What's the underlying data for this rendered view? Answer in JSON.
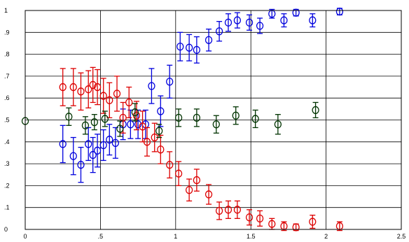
{
  "chart_data": {
    "type": "scatter",
    "title": "",
    "xlabel": "",
    "ylabel": "",
    "xlim": [
      0,
      2.5
    ],
    "ylim": [
      0,
      1.0
    ],
    "grid": true,
    "legend": "none",
    "x_ticks": [
      {
        "value": 0,
        "label": "0"
      },
      {
        "value": 0.5,
        "label": ".5"
      },
      {
        "value": 1.0,
        "label": "1"
      },
      {
        "value": 1.5,
        "label": "1.5"
      },
      {
        "value": 2.0,
        "label": "2"
      },
      {
        "value": 2.5,
        "label": "2.5"
      }
    ],
    "y_ticks": [
      {
        "value": 0,
        "label": "0"
      },
      {
        "value": 0.1,
        "label": ".1"
      },
      {
        "value": 0.2,
        "label": ".2"
      },
      {
        "value": 0.3,
        "label": ".3"
      },
      {
        "value": 0.4,
        "label": ".4"
      },
      {
        "value": 0.5,
        "label": ".5"
      },
      {
        "value": 0.6,
        "label": ".6"
      },
      {
        "value": 0.7,
        "label": ".7"
      },
      {
        "value": 0.8,
        "label": ".8"
      },
      {
        "value": 0.9,
        "label": ".9"
      },
      {
        "value": 1.0,
        "label": "1"
      }
    ],
    "series": [
      {
        "color": "#0000dd",
        "points": [
          {
            "x": 0.25,
            "y": 0.39,
            "err": 0.085
          },
          {
            "x": 0.32,
            "y": 0.335,
            "err": 0.085
          },
          {
            "x": 0.37,
            "y": 0.295,
            "err": 0.08
          },
          {
            "x": 0.42,
            "y": 0.39,
            "err": 0.075
          },
          {
            "x": 0.45,
            "y": 0.34,
            "err": 0.08
          },
          {
            "x": 0.48,
            "y": 0.36,
            "err": 0.075
          },
          {
            "x": 0.52,
            "y": 0.385,
            "err": 0.07
          },
          {
            "x": 0.56,
            "y": 0.41,
            "err": 0.07
          },
          {
            "x": 0.6,
            "y": 0.395,
            "err": 0.07
          },
          {
            "x": 0.65,
            "y": 0.48,
            "err": 0.07
          },
          {
            "x": 0.7,
            "y": 0.48,
            "err": 0.065
          },
          {
            "x": 0.75,
            "y": 0.48,
            "err": 0.065
          },
          {
            "x": 0.8,
            "y": 0.48,
            "err": 0.065
          },
          {
            "x": 0.84,
            "y": 0.655,
            "err": 0.08
          },
          {
            "x": 0.9,
            "y": 0.54,
            "err": 0.07
          },
          {
            "x": 0.96,
            "y": 0.675,
            "err": 0.075
          },
          {
            "x": 1.03,
            "y": 0.835,
            "err": 0.065
          },
          {
            "x": 1.09,
            "y": 0.83,
            "err": 0.06
          },
          {
            "x": 1.14,
            "y": 0.82,
            "err": 0.06
          },
          {
            "x": 1.22,
            "y": 0.865,
            "err": 0.05
          },
          {
            "x": 1.29,
            "y": 0.905,
            "err": 0.045
          },
          {
            "x": 1.35,
            "y": 0.945,
            "err": 0.04
          },
          {
            "x": 1.41,
            "y": 0.955,
            "err": 0.035
          },
          {
            "x": 1.49,
            "y": 0.945,
            "err": 0.035
          },
          {
            "x": 1.56,
            "y": 0.93,
            "err": 0.035
          },
          {
            "x": 1.64,
            "y": 0.985,
            "err": 0.02
          },
          {
            "x": 1.72,
            "y": 0.955,
            "err": 0.03
          },
          {
            "x": 1.8,
            "y": 0.99,
            "err": 0.015
          },
          {
            "x": 1.91,
            "y": 0.955,
            "err": 0.03
          },
          {
            "x": 2.09,
            "y": 0.995,
            "err": 0.015
          }
        ]
      },
      {
        "color": "#dd0000",
        "points": [
          {
            "x": 0.25,
            "y": 0.65,
            "err": 0.085
          },
          {
            "x": 0.32,
            "y": 0.65,
            "err": 0.085
          },
          {
            "x": 0.37,
            "y": 0.63,
            "err": 0.085
          },
          {
            "x": 0.42,
            "y": 0.64,
            "err": 0.085
          },
          {
            "x": 0.45,
            "y": 0.66,
            "err": 0.08
          },
          {
            "x": 0.48,
            "y": 0.65,
            "err": 0.08
          },
          {
            "x": 0.52,
            "y": 0.61,
            "err": 0.08
          },
          {
            "x": 0.56,
            "y": 0.59,
            "err": 0.08
          },
          {
            "x": 0.61,
            "y": 0.62,
            "err": 0.08
          },
          {
            "x": 0.65,
            "y": 0.51,
            "err": 0.07
          },
          {
            "x": 0.69,
            "y": 0.58,
            "err": 0.07
          },
          {
            "x": 0.74,
            "y": 0.52,
            "err": 0.065
          },
          {
            "x": 0.78,
            "y": 0.47,
            "err": 0.07
          },
          {
            "x": 0.81,
            "y": 0.4,
            "err": 0.065
          },
          {
            "x": 0.86,
            "y": 0.42,
            "err": 0.065
          },
          {
            "x": 0.9,
            "y": 0.365,
            "err": 0.065
          },
          {
            "x": 0.96,
            "y": 0.295,
            "err": 0.06
          },
          {
            "x": 1.02,
            "y": 0.255,
            "err": 0.055
          },
          {
            "x": 1.09,
            "y": 0.18,
            "err": 0.05
          },
          {
            "x": 1.14,
            "y": 0.225,
            "err": 0.05
          },
          {
            "x": 1.22,
            "y": 0.16,
            "err": 0.045
          },
          {
            "x": 1.29,
            "y": 0.085,
            "err": 0.04
          },
          {
            "x": 1.35,
            "y": 0.09,
            "err": 0.04
          },
          {
            "x": 1.41,
            "y": 0.09,
            "err": 0.04
          },
          {
            "x": 1.49,
            "y": 0.055,
            "err": 0.035
          },
          {
            "x": 1.56,
            "y": 0.05,
            "err": 0.035
          },
          {
            "x": 1.64,
            "y": 0.025,
            "err": 0.025
          },
          {
            "x": 1.72,
            "y": 0.015,
            "err": 0.02
          },
          {
            "x": 1.8,
            "y": 0.01,
            "err": 0.015
          },
          {
            "x": 1.91,
            "y": 0.035,
            "err": 0.03
          },
          {
            "x": 2.09,
            "y": 0.015,
            "err": 0.02
          }
        ]
      },
      {
        "color": "#003300",
        "points": [
          {
            "x": 0.0,
            "y": 0.495,
            "err": 0.0
          },
          {
            "x": 0.29,
            "y": 0.515,
            "err": 0.04
          },
          {
            "x": 0.4,
            "y": 0.475,
            "err": 0.04
          },
          {
            "x": 0.46,
            "y": 0.49,
            "err": 0.035
          },
          {
            "x": 0.53,
            "y": 0.505,
            "err": 0.035
          },
          {
            "x": 0.63,
            "y": 0.46,
            "err": 0.035
          },
          {
            "x": 0.73,
            "y": 0.535,
            "err": 0.04
          },
          {
            "x": 0.89,
            "y": 0.45,
            "err": 0.03
          },
          {
            "x": 1.02,
            "y": 0.51,
            "err": 0.04
          },
          {
            "x": 1.14,
            "y": 0.51,
            "err": 0.04
          },
          {
            "x": 1.27,
            "y": 0.48,
            "err": 0.04
          },
          {
            "x": 1.4,
            "y": 0.52,
            "err": 0.04
          },
          {
            "x": 1.53,
            "y": 0.505,
            "err": 0.04
          },
          {
            "x": 1.68,
            "y": 0.48,
            "err": 0.045
          },
          {
            "x": 1.93,
            "y": 0.545,
            "err": 0.035
          }
        ]
      }
    ]
  }
}
